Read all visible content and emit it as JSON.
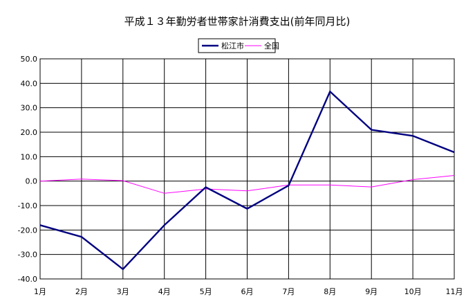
{
  "chart_data": {
    "type": "line",
    "title": "平成１３年勤労者世帯家計消費支出(前年同月比)",
    "xlabel": "",
    "ylabel": "",
    "categories": [
      "1月",
      "2月",
      "3月",
      "4月",
      "5月",
      "6月",
      "7月",
      "8月",
      "9月",
      "10月",
      "11月"
    ],
    "ylim": [
      -40,
      50
    ],
    "ytick_labels": [
      "50.0",
      "40.0",
      "30.0",
      "20.0",
      "10.0",
      "0.0",
      "-10.0",
      "-20.0",
      "-30.0",
      "-40.0"
    ],
    "grid": true,
    "legend_position": "top-center",
    "series": [
      {
        "name": "松江市",
        "color": "#000080",
        "values": [
          -18.0,
          -22.8,
          -36.0,
          -18.0,
          -2.5,
          -11.3,
          -1.8,
          36.6,
          21.0,
          18.5,
          11.8
        ]
      },
      {
        "name": "全国",
        "color": "#ff00ff",
        "values": [
          0.0,
          0.8,
          0.2,
          -5.0,
          -3.2,
          -4.0,
          -1.6,
          -1.6,
          -2.4,
          0.6,
          2.3
        ]
      }
    ]
  }
}
